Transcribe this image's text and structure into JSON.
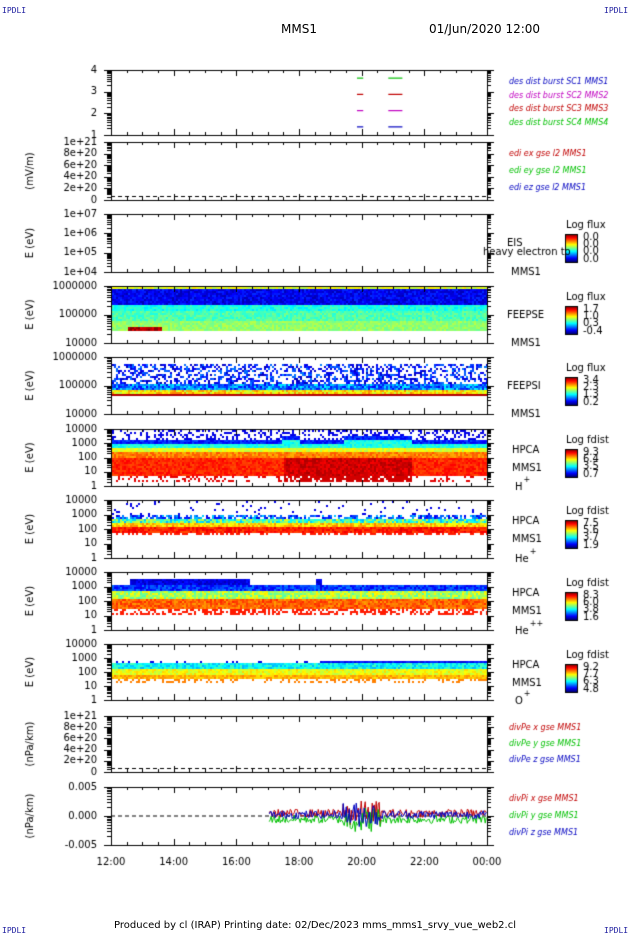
{
  "corner_label": "IPDLI",
  "header": {
    "spacecraft": "MMS1",
    "datetime": "01/Jun/2020 12:00"
  },
  "footer": "Produced by cl (IRAP)   Printing date: 02/Dec/2023   mms_mms1_srvy_vue_web2.cl",
  "time_axis": {
    "ticks": [
      "12:00",
      "14:00",
      "16:00",
      "18:00",
      "20:00",
      "22:00",
      "00:00"
    ]
  },
  "chart_data": [
    {
      "id": "dist",
      "type": "line",
      "yticks": [
        "4",
        "3",
        "2",
        "1"
      ],
      "ylim": [
        0.5,
        4.5
      ],
      "legend": [
        {
          "text": "des dist burst SC1 MMS1",
          "color": "#0000c0"
        },
        {
          "text": "des dist burst SC2 MMS2",
          "color": "#c000c0"
        },
        {
          "text": "des dist burst SC3 MMS3",
          "color": "#c00000"
        },
        {
          "text": "des dist burst SC4 MMS4",
          "color": "#00c000"
        }
      ],
      "segments": [
        {
          "level": 4,
          "t0": 19.85,
          "t1": 20.05,
          "color": "#00c000"
        },
        {
          "level": 4,
          "t0": 20.85,
          "t1": 21.3,
          "color": "#00c000"
        },
        {
          "level": 3,
          "t0": 19.85,
          "t1": 20.05,
          "color": "#c00000"
        },
        {
          "level": 3,
          "t0": 20.85,
          "t1": 21.3,
          "color": "#c00000"
        },
        {
          "level": 2,
          "t0": 19.85,
          "t1": 20.05,
          "color": "#c000c0"
        },
        {
          "level": 2,
          "t0": 20.85,
          "t1": 21.3,
          "color": "#c000c0"
        },
        {
          "level": 1,
          "t0": 19.85,
          "t1": 20.05,
          "color": "#0000c0"
        },
        {
          "level": 1,
          "t0": 20.85,
          "t1": 21.3,
          "color": "#0000c0"
        }
      ]
    },
    {
      "id": "edi",
      "type": "line",
      "ylabel": "(mV/m)",
      "yticks": [
        "1e+21",
        "8e+20",
        "6e+20",
        "4e+20",
        "2e+20",
        "0"
      ],
      "legend": [
        {
          "text": "edi ex gse l2 MMS1",
          "color": "#c00000"
        },
        {
          "text": "edi ey gse l2 MMS1",
          "color": "#00c000"
        },
        {
          "text": "edi ez gse l2 MMS1",
          "color": "#0000c0"
        }
      ]
    },
    {
      "id": "eis",
      "type": "heatmap",
      "ylabel": "E (eV)",
      "yticks": [
        "1e+07",
        "1e+06",
        "1e+05",
        "1e+04"
      ],
      "side": [
        "EIS",
        "MMS1"
      ],
      "overlay_text": "heavy electron to",
      "cbar_title": "Log flux",
      "cbar_ticks": [
        "0.0",
        "0.0",
        "0.0",
        "0.0"
      ]
    },
    {
      "id": "feepse",
      "type": "heatmap",
      "ylabel": "E (eV)",
      "yticks": [
        "1000000",
        "100000",
        "10000"
      ],
      "side": [
        "FEEPSE",
        "MMS1"
      ],
      "cbar_title": "Log flux",
      "cbar_ticks": [
        "1.7",
        "1.0",
        "0.3",
        "-0.4"
      ]
    },
    {
      "id": "feepsi",
      "type": "heatmap",
      "ylabel": "E (eV)",
      "yticks": [
        "1000000",
        "100000",
        "10000"
      ],
      "side": [
        "FEEPSI",
        "MMS1"
      ],
      "cbar_title": "Log flux",
      "cbar_ticks": [
        "3.4",
        "2.3",
        "1.3",
        "0.2"
      ]
    },
    {
      "id": "hpca_h",
      "type": "heatmap",
      "ylabel": "E (eV)",
      "yticks": [
        "10000",
        "1000",
        "100",
        "10",
        "1"
      ],
      "side": [
        "HPCA",
        "MMS1",
        "H",
        "+"
      ],
      "cbar_title": "Log fdist",
      "cbar_ticks": [
        "9.3",
        "6.4",
        "3.5",
        "0.7"
      ]
    },
    {
      "id": "hpca_he",
      "type": "heatmap",
      "ylabel": "E (eV)",
      "yticks": [
        "10000",
        "1000",
        "100",
        "10",
        "1"
      ],
      "side": [
        "HPCA",
        "MMS1",
        "He",
        "+"
      ],
      "cbar_title": "Log fdist",
      "cbar_ticks": [
        "7.5",
        "5.6",
        "3.7",
        "1.9"
      ]
    },
    {
      "id": "hpca_hepp",
      "type": "heatmap",
      "ylabel": "E (eV)",
      "yticks": [
        "10000",
        "1000",
        "100",
        "10",
        "1"
      ],
      "side": [
        "HPCA",
        "MMS1",
        "He",
        "++"
      ],
      "cbar_title": "Log fdist",
      "cbar_ticks": [
        "8.3",
        "6.0",
        "3.8",
        "1.6"
      ]
    },
    {
      "id": "hpca_o",
      "type": "heatmap",
      "ylabel": "E (eV)",
      "yticks": [
        "10000",
        "1000",
        "100",
        "10",
        "1"
      ],
      "side": [
        "HPCA",
        "MMS1",
        "O",
        "+"
      ],
      "cbar_title": "Log fdist",
      "cbar_ticks": [
        "9.2",
        "7.7",
        "6.3",
        "4.8"
      ]
    },
    {
      "id": "divpe",
      "type": "line",
      "ylabel": "(nPa/km)",
      "yticks": [
        "1e+21",
        "8e+20",
        "6e+20",
        "4e+20",
        "2e+20",
        "0"
      ],
      "legend": [
        {
          "text": "divPe x gse MMS1",
          "color": "#c00000"
        },
        {
          "text": "divPe y gse MMS1",
          "color": "#00c000"
        },
        {
          "text": "divPe z gse MMS1",
          "color": "#0000c0"
        }
      ]
    },
    {
      "id": "divpi",
      "type": "line",
      "ylabel": "(nPa/km)",
      "yticks": [
        "0.005",
        "0.000",
        "-0.005"
      ],
      "ylim": [
        -0.0085,
        0.0085
      ],
      "data_start": 17.05,
      "legend": [
        {
          "text": "divPi x gse MMS1",
          "color": "#c00000"
        },
        {
          "text": "divPi y gse MMS1",
          "color": "#00c000"
        },
        {
          "text": "divPi z gse MMS1",
          "color": "#0000c0"
        }
      ]
    }
  ]
}
